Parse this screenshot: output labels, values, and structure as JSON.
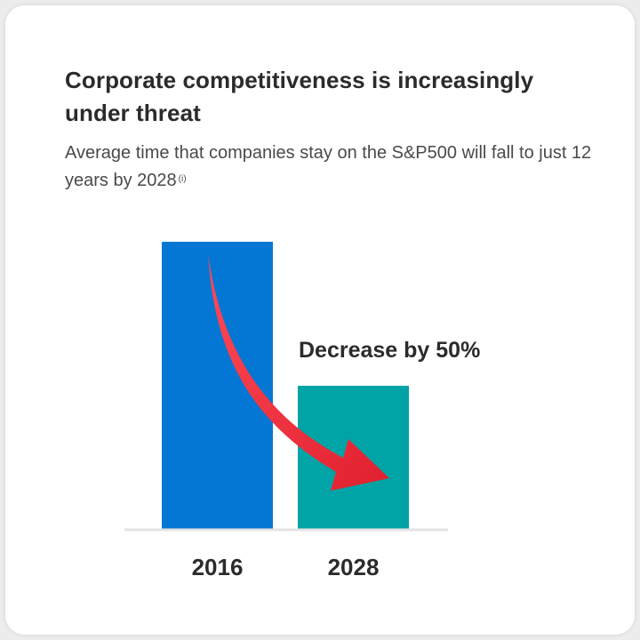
{
  "header": {
    "title": "Corporate competitiveness is increasingly under threat",
    "subtitle": "Average time that companies stay on the S&P500 will fall to just 12 years by 2028",
    "footnote": "(i)"
  },
  "chart_data": {
    "type": "bar",
    "title": "Corporate competitiveness is increasingly under threat",
    "categories": [
      "2016",
      "2028"
    ],
    "values": [
      24,
      12
    ],
    "ylim": [
      0,
      24
    ],
    "grid": false,
    "axes": false,
    "colors": [
      "#0476d4",
      "#00a3a6"
    ],
    "annotation": "Decrease by 50%",
    "arrow_color": "#ee2737"
  }
}
